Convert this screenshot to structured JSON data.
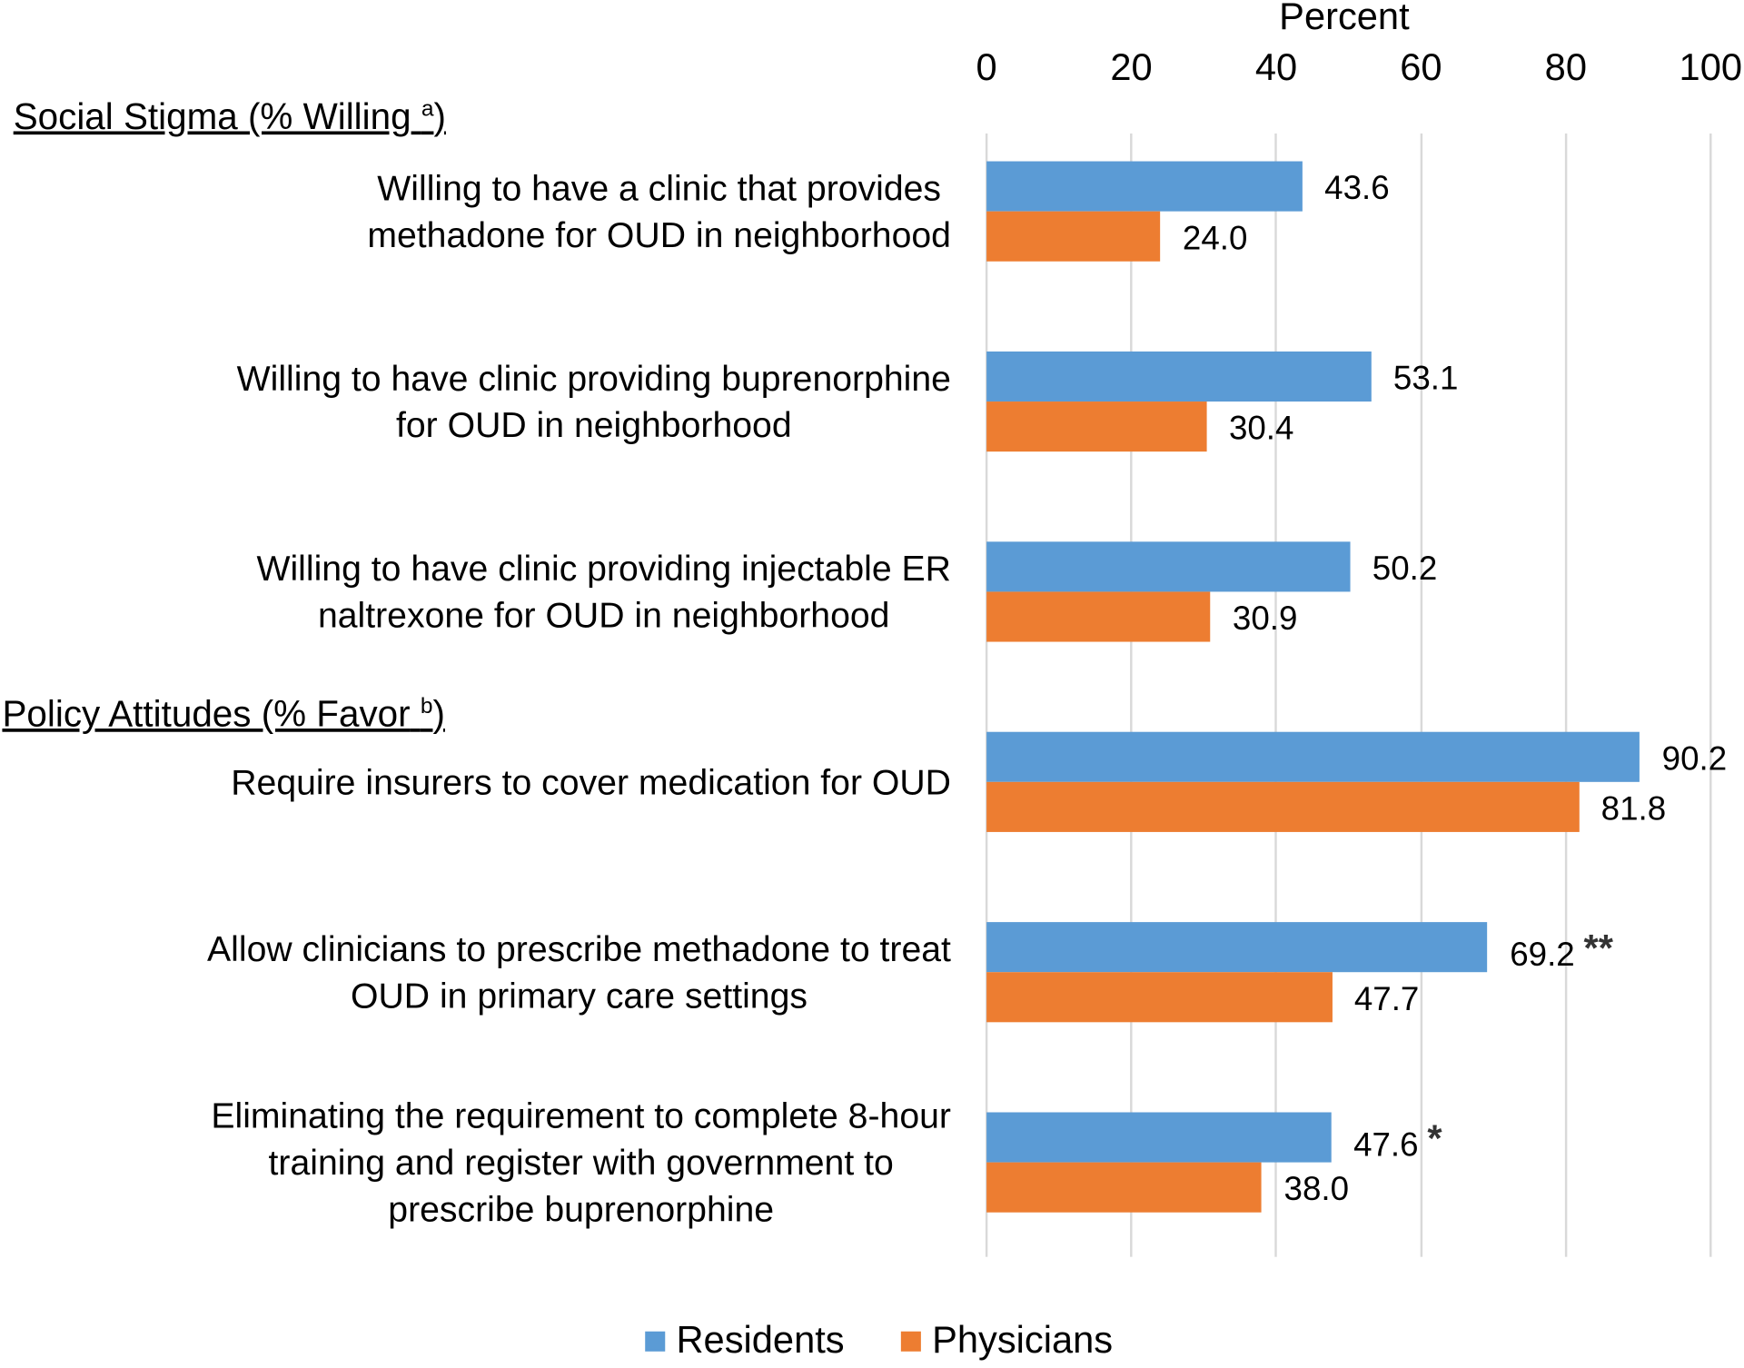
{
  "chart_data": {
    "type": "bar",
    "orientation": "horizontal",
    "xlabel": "Percent",
    "xlim": [
      0,
      100
    ],
    "xticks": [
      "0",
      "20",
      "40",
      "60",
      "80",
      "100"
    ],
    "grid": true,
    "legend_position": "bottom",
    "sections": [
      {
        "title": "Social Stigma (% Willing",
        "sup": "a",
        "close": ")"
      },
      {
        "title": "Policy Attitudes (% Favor",
        "sup": "b",
        "close": ")"
      }
    ],
    "categories": [
      {
        "lines": [
          "Willing to have a clinic that provides",
          "methadone for OUD in neighborhood"
        ],
        "section": 0
      },
      {
        "lines": [
          "Willing to have clinic providing buprenorphine",
          "for OUD in neighborhood"
        ],
        "section": 0
      },
      {
        "lines": [
          "Willing to have clinic providing injectable ER",
          "naltrexone for OUD in neighborhood"
        ],
        "section": 0
      },
      {
        "lines": [
          "Require insurers to cover medication for OUD"
        ],
        "section": 1
      },
      {
        "lines": [
          "Allow clinicians to prescribe methadone to treat",
          "OUD in primary care settings"
        ],
        "section": 1
      },
      {
        "lines": [
          "Eliminating the requirement to complete 8-hour",
          "training and register with government to",
          "prescribe buprenorphine"
        ],
        "section": 1
      }
    ],
    "series": [
      {
        "name": "Residents",
        "color": "#5b9bd5",
        "values": [
          43.6,
          53.1,
          50.2,
          90.2,
          69.2,
          47.6
        ],
        "labels": [
          "43.6",
          "53.1",
          "50.2",
          "90.2",
          "69.2",
          "47.6"
        ],
        "significance": [
          "",
          "",
          "",
          "",
          "**",
          "*"
        ]
      },
      {
        "name": "Physicians",
        "color": "#ed7d31",
        "values": [
          24.0,
          30.4,
          30.9,
          81.8,
          47.7,
          38.0
        ],
        "labels": [
          "24.0",
          "30.4",
          "30.9",
          "81.8",
          "47.7",
          "38.0"
        ],
        "significance": [
          "",
          "",
          "",
          "",
          "",
          ""
        ]
      }
    ]
  }
}
